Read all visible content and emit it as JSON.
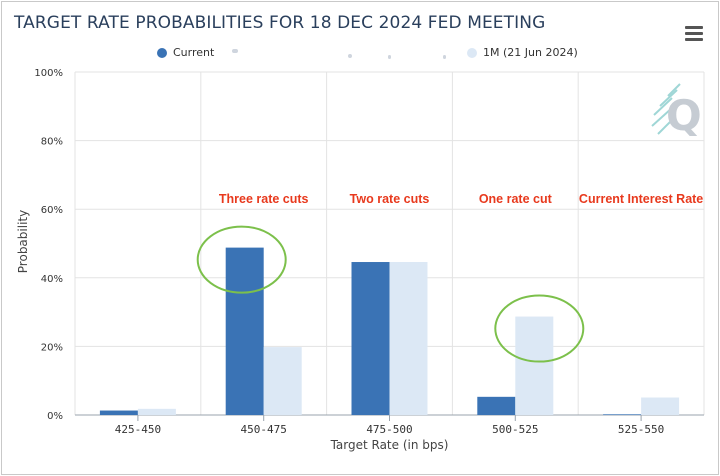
{
  "page": {
    "title": "TARGET RATE PROBABILITIES FOR 18 DEC 2024 FED MEETING"
  },
  "colors": {
    "current": "#3a73b5",
    "one_month": "#dce8f5",
    "annotation": "#e8391d",
    "circle": "#7cc04b"
  },
  "icons": {
    "menu": "hamburger-menu-icon",
    "logo": "cme-q-logo-icon"
  },
  "chart_data": {
    "type": "bar",
    "title": "TARGET RATE PROBABILITIES FOR 18 DEC 2024 FED MEETING",
    "categories": [
      "425-450",
      "450-475",
      "475-500",
      "500-525",
      "525-550"
    ],
    "series": [
      {
        "name": "Current",
        "values": [
          1.3,
          48.8,
          44.6,
          5.3,
          0.2
        ]
      },
      {
        "name": "1M (21 Jun 2024)",
        "values": [
          1.8,
          19.8,
          44.6,
          28.7,
          5.1
        ]
      }
    ],
    "xlabel": "Target Rate (in bps)",
    "ylabel": "Probability",
    "ylim": [
      0,
      100
    ],
    "yticks": [
      "0%",
      "20%",
      "40%",
      "60%",
      "80%",
      "100%"
    ],
    "grid": true,
    "legend": "top",
    "annotations": [
      {
        "text": "Three rate cuts",
        "category": "450-475"
      },
      {
        "text": "Two rate cuts",
        "category": "475-500"
      },
      {
        "text": "One rate cut",
        "category": "500-525"
      },
      {
        "text": "Current Interest Rate",
        "category": "525-550"
      }
    ],
    "highlight_circles": [
      {
        "category": "450-475",
        "series": "Current"
      },
      {
        "category": "500-525",
        "series": "1M (21 Jun 2024)"
      }
    ]
  }
}
